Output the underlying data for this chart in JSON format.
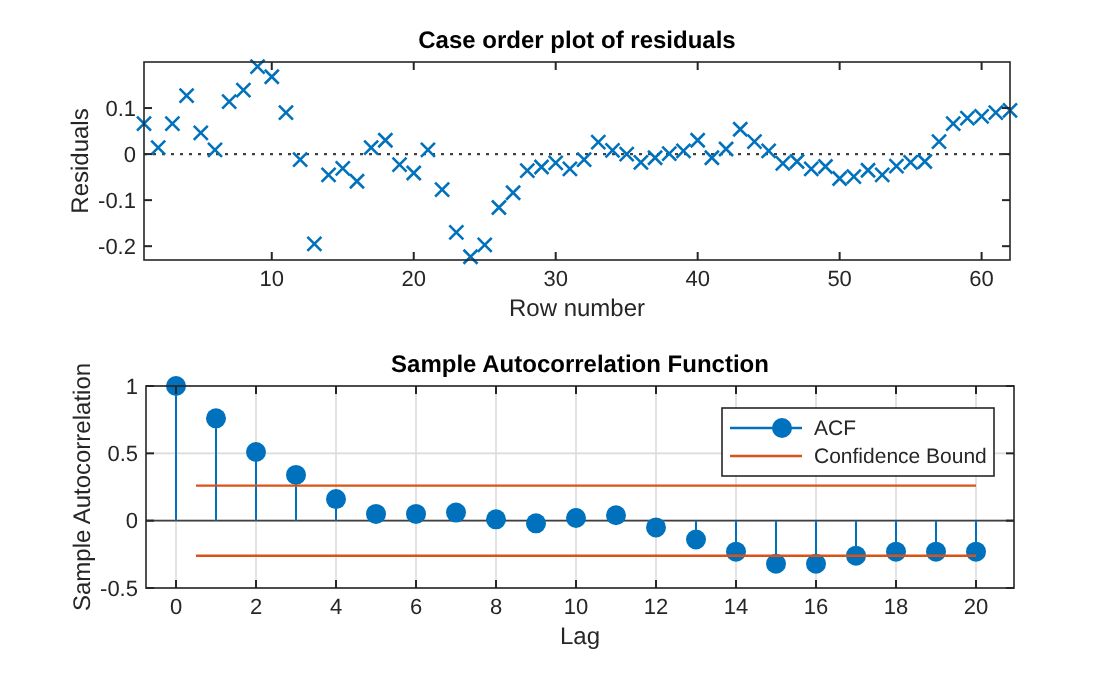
{
  "chart_data": [
    {
      "type": "scatter",
      "title": "Case order plot of residuals",
      "xlabel": "Row number",
      "ylabel": "Residuals",
      "marker": "cross",
      "grid": false,
      "legend": false,
      "x": [
        1,
        2,
        3,
        4,
        5,
        6,
        7,
        8,
        9,
        10,
        11,
        12,
        13,
        14,
        15,
        16,
        17,
        18,
        19,
        20,
        21,
        22,
        23,
        24,
        25,
        26,
        27,
        28,
        29,
        30,
        31,
        32,
        33,
        34,
        35,
        36,
        37,
        38,
        39,
        40,
        41,
        42,
        43,
        44,
        45,
        46,
        47,
        48,
        49,
        50,
        51,
        52,
        53,
        54,
        55,
        56,
        57,
        58,
        59,
        60,
        61,
        62
      ],
      "series": [
        {
          "color": "#0072bd",
          "values": [
            0.066,
            0.014,
            0.066,
            0.127,
            0.046,
            0.009,
            0.114,
            0.139,
            0.19,
            0.168,
            0.09,
            -0.012,
            -0.195,
            -0.045,
            -0.031,
            -0.059,
            0.014,
            0.03,
            -0.023,
            -0.041,
            0.009,
            -0.077,
            -0.17,
            -0.223,
            -0.197,
            -0.116,
            -0.084,
            -0.036,
            -0.028,
            -0.019,
            -0.032,
            -0.012,
            0.026,
            0.008,
            0,
            -0.018,
            -0.008,
            0.001,
            0.007,
            0.03,
            -0.008,
            0.011,
            0.054,
            0.027,
            0.007,
            -0.02,
            -0.016,
            -0.032,
            -0.027,
            -0.053,
            -0.049,
            -0.035,
            -0.045,
            -0.026,
            -0.018,
            -0.016,
            0.027,
            0.066,
            0.078,
            0.082,
            0.09,
            0.095
          ]
        }
      ],
      "ref_lines": [
        {
          "axis": "y",
          "value": 0,
          "color": "#404040",
          "line_style": "dotted"
        }
      ],
      "xlim": [
        1,
        62
      ],
      "ylim": [
        -0.23,
        0.2
      ],
      "xticks": [
        10,
        20,
        30,
        40,
        50,
        60
      ],
      "yticks": [
        -0.2,
        -0.1,
        0,
        0.1
      ]
    },
    {
      "type": "lollipop",
      "title": "Sample Autocorrelation Function",
      "xlabel": "Lag",
      "ylabel": "Sample Autocorrelation",
      "grid": true,
      "legend": "top right",
      "series": [
        {
          "name": "ACF",
          "color": "#0072bd",
          "marker": "circle",
          "x": [
            0,
            1,
            2,
            3,
            4,
            5,
            6,
            7,
            8,
            9,
            10,
            11,
            12,
            13,
            14,
            15,
            16,
            17,
            18,
            19,
            20
          ],
          "values": [
            1,
            0.76,
            0.51,
            0.34,
            0.16,
            0.05,
            0.05,
            0.06,
            0.01,
            -0.02,
            0.02,
            0.04,
            -0.05,
            -0.14,
            -0.23,
            -0.32,
            -0.32,
            -0.26,
            -0.23,
            -0.23,
            -0.23
          ]
        },
        {
          "type": "line",
          "name": "Confidence Bound",
          "color": "#d95319",
          "marker": "none",
          "x": [
            0.5,
            20
          ],
          "values": [
            0.26,
            0.26
          ]
        },
        {
          "type": "line",
          "color": "#d95319",
          "marker": "none",
          "x": [
            0.5,
            20
          ],
          "values": [
            -0.26,
            -0.26
          ]
        }
      ],
      "xlim": [
        -0.75,
        20.95
      ],
      "ylim": [
        -0.5,
        1
      ],
      "xticks": [
        0,
        2,
        4,
        6,
        8,
        10,
        12,
        14,
        16,
        18,
        20
      ],
      "yticks": [
        -0.5,
        0,
        0.5,
        1
      ]
    }
  ]
}
